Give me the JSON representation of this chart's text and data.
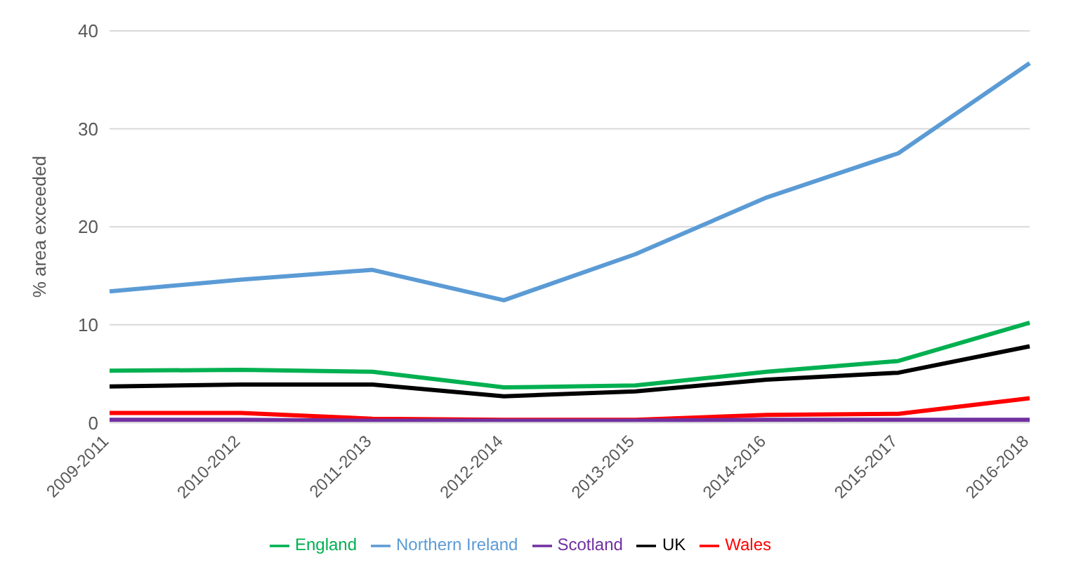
{
  "chart_data": {
    "type": "line",
    "ylabel": "% area exceeded",
    "categories": [
      "2009-2011",
      "2010-2012",
      "2011-2013",
      "2012-2014",
      "2013-2015",
      "2014-2016",
      "2015-2017",
      "2016-2018"
    ],
    "series": [
      {
        "name": "UK",
        "color": "#000000",
        "values": [
          3.7,
          3.9,
          3.9,
          2.7,
          3.2,
          4.4,
          5.1,
          7.8
        ]
      },
      {
        "name": "England",
        "color": "#00b050",
        "values": [
          5.3,
          5.4,
          5.2,
          3.6,
          3.8,
          5.2,
          6.3,
          10.2
        ]
      },
      {
        "name": "Wales",
        "color": "#ff0000",
        "values": [
          1.0,
          1.0,
          0.4,
          0.3,
          0.3,
          0.8,
          0.9,
          2.5
        ]
      },
      {
        "name": "Scotland",
        "color": "#7030a0",
        "values": [
          0.3,
          0.3,
          0.2,
          0.2,
          0.2,
          0.3,
          0.3,
          0.3
        ]
      },
      {
        "name": "Northern Ireland",
        "color": "#5b9bd5",
        "values": [
          13.4,
          14.6,
          15.6,
          12.5,
          17.2,
          23.0,
          27.5,
          36.7
        ]
      }
    ],
    "ylim": [
      0,
      40
    ],
    "yticks": [
      0,
      10,
      20,
      30,
      40
    ],
    "grid": "y",
    "legend": "bottom",
    "marker": "none",
    "line_style": "solid"
  }
}
